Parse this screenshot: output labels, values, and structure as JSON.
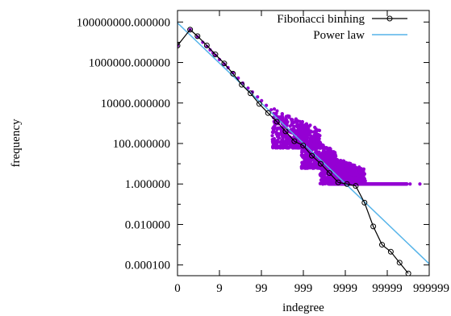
{
  "chart_data": {
    "type": "scatter",
    "xlabel": "indegree",
    "ylabel": "frequency",
    "x_scale": "log",
    "y_scale": "log",
    "x_ticks": [
      {
        "value": 0,
        "label": "0"
      },
      {
        "value": 9,
        "label": "9"
      },
      {
        "value": 99,
        "label": "99"
      },
      {
        "value": 999,
        "label": "999"
      },
      {
        "value": 9999,
        "label": "9999"
      },
      {
        "value": 99999,
        "label": "99999"
      },
      {
        "value": 999999,
        "label": "999999"
      }
    ],
    "y_ticks": [
      {
        "value": 0.0001,
        "label": "0.000100"
      },
      {
        "value": 0.01,
        "label": "0.010000"
      },
      {
        "value": 1,
        "label": "1.000000"
      },
      {
        "value": 100,
        "label": "100.000000"
      },
      {
        "value": 10000,
        "label": "10000.000000"
      },
      {
        "value": 1000000,
        "label": "1000000.000000"
      },
      {
        "value": 100000000,
        "label": "100000000.000000"
      }
    ],
    "legend_position": "top-right",
    "series": [
      {
        "name": "Fibonacci binning",
        "type": "line",
        "marker": "open-circle",
        "color": "#000000",
        "points": [
          [
            0,
            6900000.0
          ],
          [
            1,
            42000000.0
          ],
          [
            2,
            20000000.0
          ],
          [
            4,
            7000000.0
          ],
          [
            7,
            2500000.0
          ],
          [
            12,
            900000.0
          ],
          [
            20,
            280000.0
          ],
          [
            33,
            80000.0
          ],
          [
            54,
            30000.0
          ],
          [
            88,
            9000.0
          ],
          [
            143,
            3200.0
          ],
          [
            232,
            1200.0
          ],
          [
            376,
            400
          ],
          [
            609,
            130
          ],
          [
            986,
            80
          ],
          [
            1596,
            25
          ],
          [
            2583,
            10
          ],
          [
            4180,
            3.5
          ],
          [
            6764,
            1.2
          ],
          [
            10945,
            1.0
          ],
          [
            17710,
            0.8
          ],
          [
            28656,
            0.12
          ],
          [
            46367,
            0.008
          ],
          [
            75024,
            0.001
          ],
          [
            121392,
            0.00045
          ],
          [
            196417,
            0.00013
          ],
          [
            317810,
            3.8e-05
          ]
        ]
      },
      {
        "name": "Power law",
        "type": "line",
        "color": "#56b4e9",
        "exponent": 2.05,
        "points": [
          [
            1,
            90000000.0
          ],
          [
            400000,
            0.0007
          ]
        ]
      },
      {
        "name": "",
        "type": "scatter",
        "color": "#9400d3",
        "points": [
          [
            0,
            6900000.0
          ],
          [
            1,
            42000000.0
          ],
          [
            2,
            19000000.0
          ],
          [
            3,
            10000000.0
          ],
          [
            4,
            6300000.0
          ],
          [
            5,
            4200000.0
          ],
          [
            6,
            3000000.0
          ],
          [
            7,
            2300000.0
          ],
          [
            9,
            1400000.0
          ],
          [
            12,
            850000.0
          ],
          [
            15,
            560000.0
          ],
          [
            20,
            310000.0
          ],
          [
            27,
            170000.0
          ],
          [
            35,
            96000.0
          ],
          [
            47,
            54000.0
          ],
          [
            60,
            35000.0
          ],
          [
            80,
            20000.0
          ],
          [
            100,
            13000.0
          ],
          [
            130,
            7600.0
          ],
          [
            170,
            4600.0
          ],
          [
            220,
            2700.0
          ],
          [
            300,
            1500.0
          ],
          [
            400,
            850
          ],
          [
            550,
            470
          ],
          [
            750,
            260
          ]
        ],
        "scatter_bands": [
          {
            "x_from": 180,
            "x_to": 2500,
            "y_min": 60,
            "y_max": 6000,
            "count": 520
          },
          {
            "x_from": 900,
            "x_to": 6000,
            "y_min": 6,
            "y_max": 400,
            "count": 520
          },
          {
            "x_from": 2500,
            "x_to": 30000,
            "y_min": 1,
            "y_max": 40,
            "count": 650
          },
          {
            "x_from": 5000,
            "x_to": 30000,
            "y_min": 1,
            "y_max": 3,
            "count": 220
          }
        ],
        "flat_floor": {
          "x_from": 4000,
          "x_to": 300000,
          "y": 1.0,
          "count": 260
        },
        "outliers": [
          [
            350000,
            1.0
          ],
          [
            600000,
            1.0
          ]
        ]
      }
    ]
  }
}
